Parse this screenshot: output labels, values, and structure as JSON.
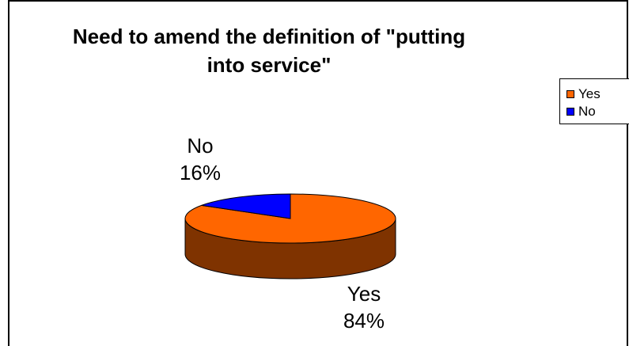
{
  "chart_data": {
    "type": "pie",
    "title": "Need to amend the definition of \"putting into service\"",
    "title_lines": [
      "Need to amend the definition of \"putting",
      "into service\""
    ],
    "categories": [
      "Yes",
      "No"
    ],
    "values": [
      84,
      16
    ],
    "labels": [
      {
        "category": "Yes",
        "percent": "84%"
      },
      {
        "category": "No",
        "percent": "16%"
      }
    ],
    "colors": {
      "Yes": "#FF6600",
      "No": "#0000FF",
      "Yes_side": "#7F3300",
      "No_side": "#00007F"
    },
    "legend": {
      "placement": "right",
      "items": [
        "Yes",
        "No"
      ]
    },
    "style": "3d"
  }
}
